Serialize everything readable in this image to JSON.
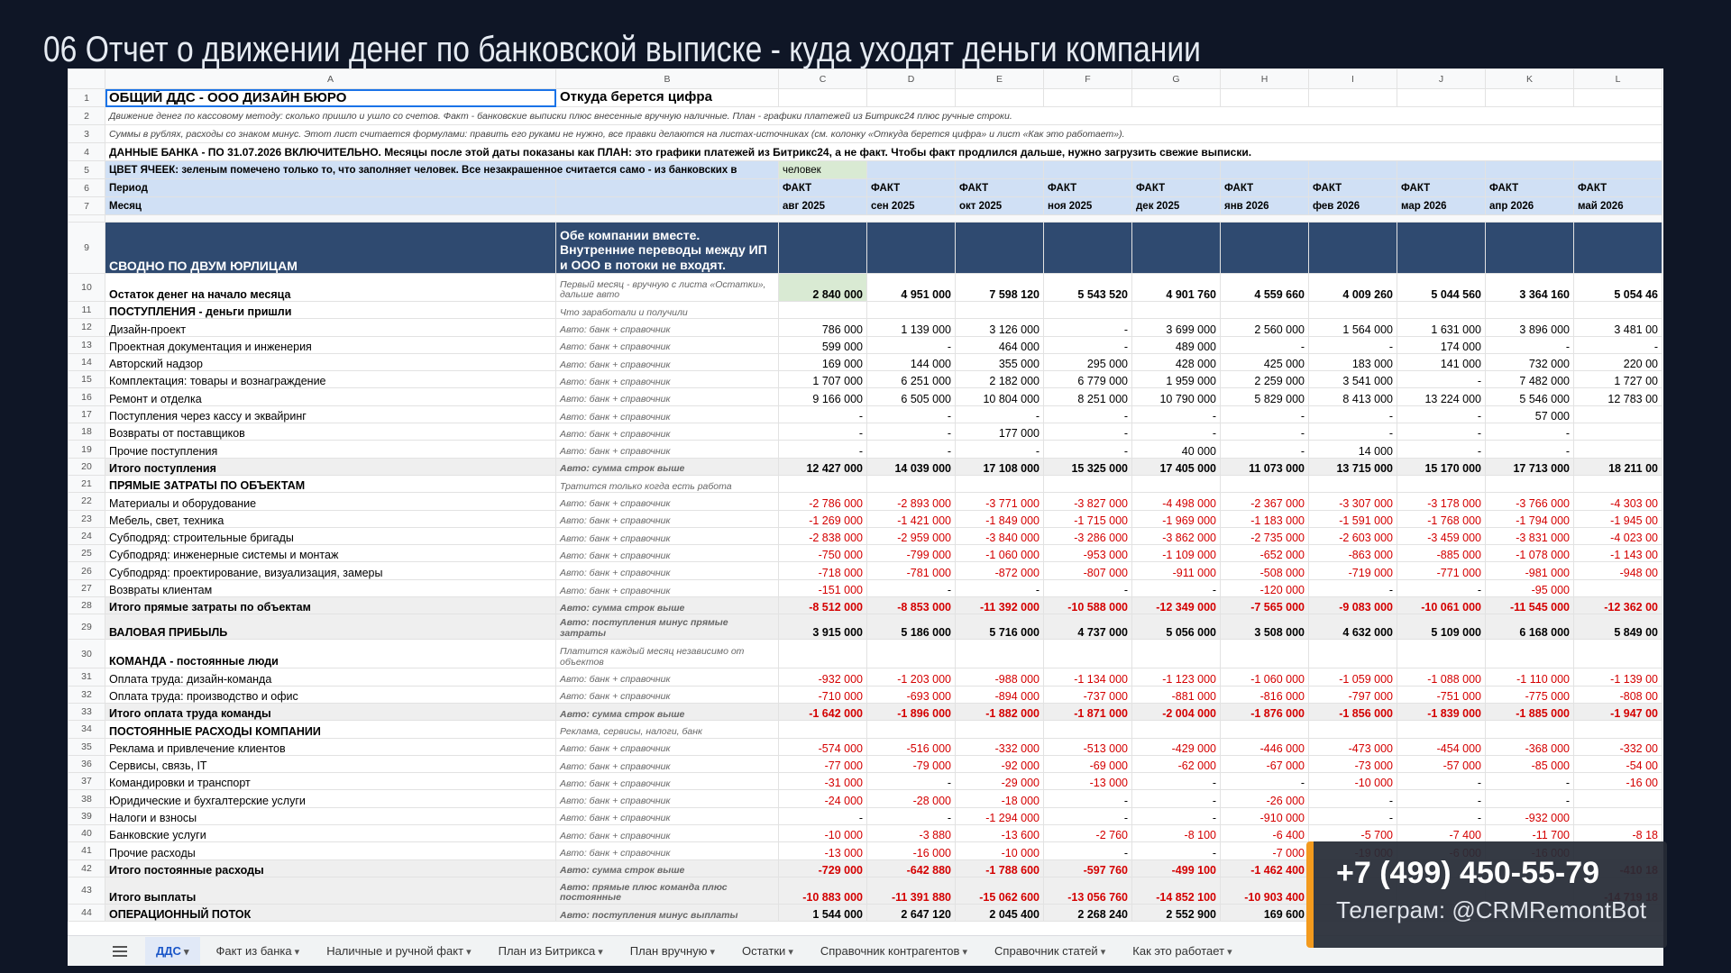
{
  "title": "06 Отчет о движении денег по банковской выписке - куда уходят деньги компании",
  "sheet": {
    "columns": [
      "A",
      "B",
      "C",
      "D",
      "E",
      "F",
      "G",
      "H",
      "I",
      "J",
      "K",
      "L"
    ],
    "rows": [
      {
        "num": "1",
        "a": "ОБЩИЙ ДДС - ООО ДИЗАЙН БЮРО",
        "b": "Откуда берется цифра"
      },
      {
        "num": "2",
        "a": "Движение денег по кассовому методу: сколько пришло и ушло со счетов. Факт - банковские выписки плюс внесенные вручную наличные. План - графики платежей из Битрикс24 плюс ручные строки."
      },
      {
        "num": "3",
        "a": "Суммы в рублях, расходы со знаком минус. Этот лист считается формулами: править его руками не нужно, все правки делаются на листах-источниках (см. колонку «Откуда берется цифра» и лист «Как это работает»)."
      },
      {
        "num": "4",
        "a": "ДАННЫЕ БАНКА - ПО 31.07.2026 ВКЛЮЧИТЕЛЬНО. Месяцы после этой даты показаны как ПЛАН: это графики платежей из Битрикс24, а не факт. Чтобы факт продлился дальше, нужно загрузить свежие выписки."
      },
      {
        "num": "5",
        "a": "ЦВЕТ ЯЧЕЕК: зеленым помечено только то, что заполняет человек. Все незакрашенное считается само - из банковских в",
        "cells": [
          "человек"
        ]
      },
      {
        "num": "6",
        "a": "Период",
        "cells": [
          "ФАКТ",
          "ФАКТ",
          "ФАКТ",
          "ФАКТ",
          "ФАКТ",
          "ФАКТ",
          "ФАКТ",
          "ФАКТ",
          "ФАКТ",
          "ФАКТ"
        ]
      },
      {
        "num": "7",
        "a": "Месяц",
        "cells": [
          "авг 2025",
          "сен 2025",
          "окт 2025",
          "ноя 2025",
          "дек 2025",
          "янв 2026",
          "фев 2026",
          "мар 2026",
          "апр 2026",
          "май 2026"
        ]
      },
      {
        "num": "9",
        "a": "СВОДНО ПО ДВУМ ЮРЛИЦАМ",
        "b": "Обе компании вместе. Внутренние переводы между ИП и ООО в потоки не входят."
      },
      {
        "num": "10",
        "a": "Остаток денег на начало месяца",
        "b": "Первый месяц - вручную с листа «Остатки», дальше авто",
        "cells": [
          "2 840 000",
          "4 951 000",
          "7 598 120",
          "5 543 520",
          "4 901 760",
          "4 559 660",
          "4 009 260",
          "5 044 560",
          "3 364 160",
          "5 054 46"
        ]
      },
      {
        "num": "11",
        "a": "ПОСТУПЛЕНИЯ - деньги пришли",
        "b": "Что заработали и получили"
      },
      {
        "num": "12",
        "a": "Дизайн-проект",
        "b": "Авто: банк + справочник",
        "cells": [
          "786 000",
          "1 139 000",
          "3 126 000",
          "-",
          "3 699 000",
          "2 560 000",
          "1 564 000",
          "1 631 000",
          "3 896 000",
          "3 481 00"
        ]
      },
      {
        "num": "13",
        "a": "Проектная документация и инженерия",
        "b": "Авто: банк + справочник",
        "cells": [
          "599 000",
          "-",
          "464 000",
          "-",
          "489 000",
          "-",
          "-",
          "174 000",
          "-",
          "-"
        ]
      },
      {
        "num": "14",
        "a": "Авторский надзор",
        "b": "Авто: банк + справочник",
        "cells": [
          "169 000",
          "144 000",
          "355 000",
          "295 000",
          "428 000",
          "425 000",
          "183 000",
          "141 000",
          "732 000",
          "220 00"
        ]
      },
      {
        "num": "15",
        "a": "Комплектация: товары и вознаграждение",
        "b": "Авто: банк + справочник",
        "cells": [
          "1 707 000",
          "6 251 000",
          "2 182 000",
          "6 779 000",
          "1 959 000",
          "2 259 000",
          "3 541 000",
          "-",
          "7 482 000",
          "1 727 00"
        ]
      },
      {
        "num": "16",
        "a": "Ремонт и отделка",
        "b": "Авто: банк + справочник",
        "cells": [
          "9 166 000",
          "6 505 000",
          "10 804 000",
          "8 251 000",
          "10 790 000",
          "5 829 000",
          "8 413 000",
          "13 224 000",
          "5 546 000",
          "12 783 00"
        ]
      },
      {
        "num": "17",
        "a": "Поступления через кассу и эквайринг",
        "b": "Авто: банк + справочник",
        "cells": [
          "-",
          "-",
          "-",
          "-",
          "-",
          "-",
          "-",
          "-",
          "57 000"
        ]
      },
      {
        "num": "18",
        "a": "Возвраты от поставщиков",
        "b": "Авто: банк + справочник",
        "cells": [
          "-",
          "-",
          "177 000",
          "-",
          "-",
          "-",
          "-",
          "-",
          "-"
        ]
      },
      {
        "num": "19",
        "a": "Прочие поступления",
        "b": "Авто: банк + справочник",
        "cells": [
          "-",
          "-",
          "-",
          "-",
          "40 000",
          "-",
          "14 000",
          "-",
          "-"
        ]
      },
      {
        "num": "20",
        "a": "Итого поступления",
        "b": "Авто: сумма строк выше",
        "cells": [
          "12 427 000",
          "14 039 000",
          "17 108 000",
          "15 325 000",
          "17 405 000",
          "11 073 000",
          "13 715 000",
          "15 170 000",
          "17 713 000",
          "18 211 00"
        ]
      },
      {
        "num": "21",
        "a": "ПРЯМЫЕ ЗАТРАТЫ ПО ОБЪЕКТАМ",
        "b": "Тратится только когда есть работа"
      },
      {
        "num": "22",
        "a": "Материалы и оборудование",
        "b": "Авто: банк + справочник",
        "cells": [
          "-2 786 000",
          "-2 893 000",
          "-3 771 000",
          "-3 827 000",
          "-4 498 000",
          "-2 367 000",
          "-3 307 000",
          "-3 178 000",
          "-3 766 000",
          "-4 303 00"
        ]
      },
      {
        "num": "23",
        "a": "Мебель, свет, техника",
        "b": "Авто: банк + справочник",
        "cells": [
          "-1 269 000",
          "-1 421 000",
          "-1 849 000",
          "-1 715 000",
          "-1 969 000",
          "-1 183 000",
          "-1 591 000",
          "-1 768 000",
          "-1 794 000",
          "-1 945 00"
        ]
      },
      {
        "num": "24",
        "a": "Субподряд: строительные бригады",
        "b": "Авто: банк + справочник",
        "cells": [
          "-2 838 000",
          "-2 959 000",
          "-3 840 000",
          "-3 286 000",
          "-3 862 000",
          "-2 735 000",
          "-2 603 000",
          "-3 459 000",
          "-3 831 000",
          "-4 023 00"
        ]
      },
      {
        "num": "25",
        "a": "Субподряд: инженерные системы и монтаж",
        "b": "Авто: банк + справочник",
        "cells": [
          "-750 000",
          "-799 000",
          "-1 060 000",
          "-953 000",
          "-1 109 000",
          "-652 000",
          "-863 000",
          "-885 000",
          "-1 078 000",
          "-1 143 00"
        ]
      },
      {
        "num": "26",
        "a": "Субподряд: проектирование, визуализация, замеры",
        "b": "Авто: банк + справочник",
        "cells": [
          "-718 000",
          "-781 000",
          "-872 000",
          "-807 000",
          "-911 000",
          "-508 000",
          "-719 000",
          "-771 000",
          "-981 000",
          "-948 00"
        ]
      },
      {
        "num": "27",
        "a": "Возвраты клиентам",
        "b": "Авто: банк + справочник",
        "cells": [
          "-151 000",
          "-",
          "-",
          "-",
          "-",
          "-120 000",
          "-",
          "-",
          "-95 000"
        ]
      },
      {
        "num": "28",
        "a": "Итого прямые затраты по объектам",
        "b": "Авто: сумма строк выше",
        "cells": [
          "-8 512 000",
          "-8 853 000",
          "-11 392 000",
          "-10 588 000",
          "-12 349 000",
          "-7 565 000",
          "-9 083 000",
          "-10 061 000",
          "-11 545 000",
          "-12 362 00"
        ]
      },
      {
        "num": "29",
        "a": "ВАЛОВАЯ ПРИБЫЛЬ",
        "b": "Авто: поступления минус прямые затраты",
        "cells": [
          "3 915 000",
          "5 186 000",
          "5 716 000",
          "4 737 000",
          "5 056 000",
          "3 508 000",
          "4 632 000",
          "5 109 000",
          "6 168 000",
          "5 849 00"
        ]
      },
      {
        "num": "30",
        "a": "КОМАНДА - постоянные люди",
        "b": "Платится каждый месяц независимо от объектов"
      },
      {
        "num": "31",
        "a": "Оплата труда: дизайн-команда",
        "b": "Авто: банк + справочник",
        "cells": [
          "-932 000",
          "-1 203 000",
          "-988 000",
          "-1 134 000",
          "-1 123 000",
          "-1 060 000",
          "-1 059 000",
          "-1 088 000",
          "-1 110 000",
          "-1 139 00"
        ]
      },
      {
        "num": "32",
        "a": "Оплата труда: производство и офис",
        "b": "Авто: банк + справочник",
        "cells": [
          "-710 000",
          "-693 000",
          "-894 000",
          "-737 000",
          "-881 000",
          "-816 000",
          "-797 000",
          "-751 000",
          "-775 000",
          "-808 00"
        ]
      },
      {
        "num": "33",
        "a": "Итого оплата труда команды",
        "b": "Авто: сумма строк выше",
        "cells": [
          "-1 642 000",
          "-1 896 000",
          "-1 882 000",
          "-1 871 000",
          "-2 004 000",
          "-1 876 000",
          "-1 856 000",
          "-1 839 000",
          "-1 885 000",
          "-1 947 00"
        ]
      },
      {
        "num": "34",
        "a": "ПОСТОЯННЫЕ РАСХОДЫ КОМПАНИИ",
        "b": "Реклама, сервисы, налоги, банк"
      },
      {
        "num": "35",
        "a": "Реклама и привлечение клиентов",
        "b": "Авто: банк + справочник",
        "cells": [
          "-574 000",
          "-516 000",
          "-332 000",
          "-513 000",
          "-429 000",
          "-446 000",
          "-473 000",
          "-454 000",
          "-368 000",
          "-332 00"
        ]
      },
      {
        "num": "36",
        "a": "Сервисы, связь, IT",
        "b": "Авто: банк + справочник",
        "cells": [
          "-77 000",
          "-79 000",
          "-92 000",
          "-69 000",
          "-62 000",
          "-67 000",
          "-73 000",
          "-57 000",
          "-85 000",
          "-54 00"
        ]
      },
      {
        "num": "37",
        "a": "Командировки и транспорт",
        "b": "Авто: банк + справочник",
        "cells": [
          "-31 000",
          "-",
          "-29 000",
          "-13 000",
          "-",
          "-",
          "-10 000",
          "-",
          "-",
          "-16 00"
        ]
      },
      {
        "num": "38",
        "a": "Юридические и бухгалтерские услуги",
        "b": "Авто: банк + справочник",
        "cells": [
          "-24 000",
          "-28 000",
          "-18 000",
          "-",
          "-",
          "-26 000",
          "-",
          "-",
          "-"
        ]
      },
      {
        "num": "39",
        "a": "Налоги и взносы",
        "b": "Авто: банк + справочник",
        "cells": [
          "-",
          "-",
          "-1 294 000",
          "-",
          "-",
          "-910 000",
          "-",
          "-",
          "-932 000"
        ]
      },
      {
        "num": "40",
        "a": "Банковские услуги",
        "b": "Авто: банк + справочник",
        "cells": [
          "-10 000",
          "-3 880",
          "-13 600",
          "-2 760",
          "-8 100",
          "-6 400",
          "-5 700",
          "-7 400",
          "-11 700",
          "-8 18"
        ]
      },
      {
        "num": "41",
        "a": "Прочие расходы",
        "b": "Авто: банк + справочник",
        "cells": [
          "-13 000",
          "-16 000",
          "-10 000",
          "-",
          "-",
          "-7 000",
          "-19 000",
          "-6 000",
          "-16 000"
        ]
      },
      {
        "num": "42",
        "a": "Итого постоянные расходы",
        "b": "Авто: сумма строк выше",
        "cells": [
          "-729 000",
          "-642 880",
          "-1 788 600",
          "-597 760",
          "-499 100",
          "-1 462 400",
          null,
          null,
          null,
          "-410 18"
        ]
      },
      {
        "num": "43",
        "a": "Итого выплаты",
        "b": "Авто: прямые плюс команда плюс постоянные",
        "cells": [
          "-10 883 000",
          "-11 391 880",
          "-15 062 600",
          "-13 056 760",
          "-14 852 100",
          "-10 903 400",
          null,
          null,
          null,
          "-14 719 18"
        ]
      },
      {
        "num": "44",
        "a": "ОПЕРАЦИОННЫЙ ПОТОК",
        "b": "Авто: поступления минус выплаты",
        "cells": [
          "1 544 000",
          "2 647 120",
          "2 045 400",
          "2 268 240",
          "2 552 900",
          "169 600"
        ]
      }
    ],
    "tabs": [
      "ДДС",
      "Факт из банка",
      "Наличные и ручной факт",
      "План из Битрикса",
      "План вручную",
      "Остатки",
      "Справочник контрагентов",
      "Справочник статей",
      "Как это работает"
    ]
  },
  "contact": {
    "phone": "+7 (499) 450-55-79",
    "telegram": "Телеграм: @CRMRemontBot"
  }
}
